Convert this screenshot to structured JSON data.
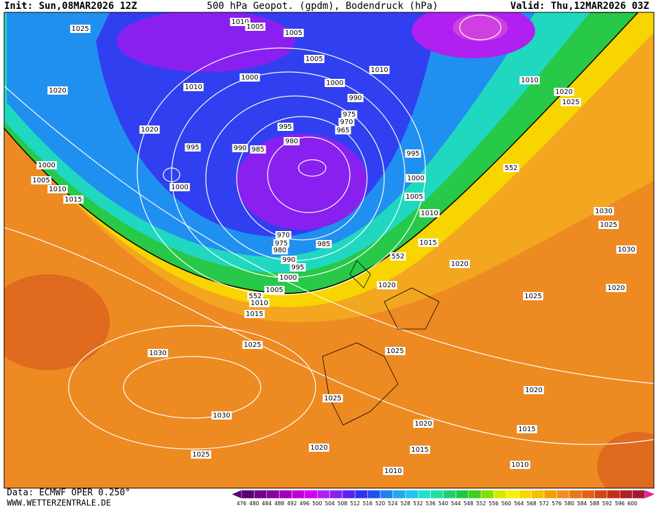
{
  "header": {
    "init": "Init: Sun,08MAR2026 12Z",
    "title": "500 hPa Geopot. (gpdm), Bodendruck (hPa)",
    "valid": "Valid: Thu,12MAR2026 03Z"
  },
  "isobar_labels": [
    1025,
    1010,
    1005,
    1005,
    1005,
    1010,
    1000,
    1010,
    1000,
    990,
    1010,
    1020,
    1025,
    1020,
    975,
    970,
    965,
    995,
    980,
    1020,
    995,
    990,
    985,
    995,
    552,
    1000,
    1005,
    1010,
    1015,
    1000,
    1000,
    1005,
    1010,
    1030,
    1025,
    970,
    975,
    980,
    985,
    1015,
    552,
    1030,
    990,
    995,
    1020,
    1000,
    1020,
    1005,
    552,
    1010,
    1025,
    1020,
    1015,
    1025,
    1025,
    1030,
    1025,
    1030,
    1020,
    1020,
    1015,
    1020,
    1015,
    1025,
    1010,
    1010
  ],
  "color_scale": {
    "labels": [
      476,
      480,
      484,
      488,
      492,
      496,
      500,
      504,
      508,
      512,
      516,
      520,
      524,
      528,
      532,
      536,
      540,
      544,
      548,
      552,
      556,
      560,
      564,
      568,
      572,
      576,
      580,
      584,
      588,
      592,
      596,
      600
    ],
    "colors": [
      "#5a0070",
      "#70008a",
      "#8a00a0",
      "#a000b8",
      "#c000d8",
      "#d000f0",
      "#b020f0",
      "#8a20f0",
      "#6020f0",
      "#3030f0",
      "#2050f0",
      "#2080f0",
      "#20a8f0",
      "#20c8f0",
      "#20e0d0",
      "#20e0a0",
      "#20d070",
      "#20c840",
      "#40d020",
      "#80e000",
      "#d8e800",
      "#f8f000",
      "#f8d800",
      "#f8c000",
      "#f0a000",
      "#f09020",
      "#e87818",
      "#e06018",
      "#d04818",
      "#c03018",
      "#b02020",
      "#a01830"
    ]
  },
  "footer": {
    "source": "Data: ECMWF OPER 0.250°",
    "site": "WWW.WETTERZENTRALE.DE"
  }
}
